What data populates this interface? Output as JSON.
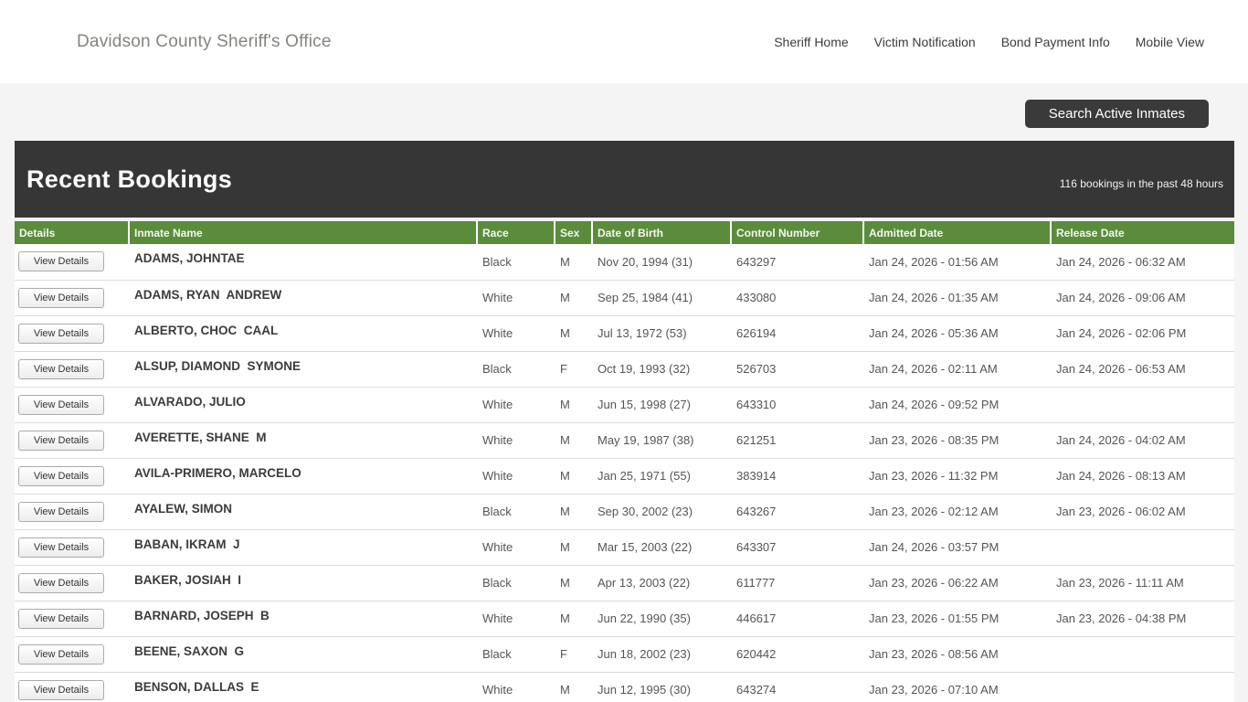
{
  "header": {
    "site_title": "Davidson County Sheriff's Office",
    "nav": [
      {
        "label": "Sheriff Home"
      },
      {
        "label": "Victim Notification"
      },
      {
        "label": "Bond Payment Info"
      },
      {
        "label": "Mobile View"
      }
    ]
  },
  "toolbar": {
    "search_button_label": "Search Active Inmates"
  },
  "bookings": {
    "title": "Recent Bookings",
    "subtitle": "116 bookings in the past 48 hours",
    "view_details_label": "View Details",
    "columns": [
      "Details",
      "Inmate Name",
      "Race",
      "Sex",
      "Date of Birth",
      "Control Number",
      "Admitted Date",
      "Release Date"
    ],
    "rows": [
      {
        "name": "ADAMS, JOHNTAE",
        "race": "Black",
        "sex": "M",
        "dob": "Nov 20, 1994 (31)",
        "control": "643297",
        "admitted": "Jan 24, 2026 - 01:56 AM",
        "released": "Jan 24, 2026 - 06:32 AM"
      },
      {
        "name": "ADAMS, RYAN  ANDREW",
        "race": "White",
        "sex": "M",
        "dob": "Sep 25, 1984 (41)",
        "control": "433080",
        "admitted": "Jan 24, 2026 - 01:35 AM",
        "released": "Jan 24, 2026 - 09:06 AM"
      },
      {
        "name": "ALBERTO, CHOC  CAAL",
        "race": "White",
        "sex": "M",
        "dob": "Jul 13, 1972 (53)",
        "control": "626194",
        "admitted": "Jan 24, 2026 - 05:36 AM",
        "released": "Jan 24, 2026 - 02:06 PM"
      },
      {
        "name": "ALSUP, DIAMOND  SYMONE",
        "race": "Black",
        "sex": "F",
        "dob": "Oct 19, 1993 (32)",
        "control": "526703",
        "admitted": "Jan 24, 2026 - 02:11 AM",
        "released": "Jan 24, 2026 - 06:53 AM"
      },
      {
        "name": "ALVARADO, JULIO",
        "race": "White",
        "sex": "M",
        "dob": "Jun 15, 1998 (27)",
        "control": "643310",
        "admitted": "Jan 24, 2026 - 09:52 PM",
        "released": ""
      },
      {
        "name": "AVERETTE, SHANE  M",
        "race": "White",
        "sex": "M",
        "dob": "May 19, 1987 (38)",
        "control": "621251",
        "admitted": "Jan 23, 2026 - 08:35 PM",
        "released": "Jan 24, 2026 - 04:02 AM"
      },
      {
        "name": "AVILA-PRIMERO, MARCELO",
        "race": "White",
        "sex": "M",
        "dob": "Jan 25, 1971 (55)",
        "control": "383914",
        "admitted": "Jan 23, 2026 - 11:32 PM",
        "released": "Jan 24, 2026 - 08:13 AM"
      },
      {
        "name": "AYALEW, SIMON",
        "race": "Black",
        "sex": "M",
        "dob": "Sep 30, 2002 (23)",
        "control": "643267",
        "admitted": "Jan 23, 2026 - 02:12 AM",
        "released": "Jan 23, 2026 - 06:02 AM"
      },
      {
        "name": "BABAN, IKRAM  J",
        "race": "White",
        "sex": "M",
        "dob": "Mar 15, 2003 (22)",
        "control": "643307",
        "admitted": "Jan 24, 2026 - 03:57 PM",
        "released": ""
      },
      {
        "name": "BAKER, JOSIAH  I",
        "race": "Black",
        "sex": "M",
        "dob": "Apr 13, 2003 (22)",
        "control": "611777",
        "admitted": "Jan 23, 2026 - 06:22 AM",
        "released": "Jan 23, 2026 - 11:11 AM"
      },
      {
        "name": "BARNARD, JOSEPH  B",
        "race": "White",
        "sex": "M",
        "dob": "Jun 22, 1990 (35)",
        "control": "446617",
        "admitted": "Jan 23, 2026 - 01:55 PM",
        "released": "Jan 23, 2026 - 04:38 PM"
      },
      {
        "name": "BEENE, SAXON  G",
        "race": "Black",
        "sex": "F",
        "dob": "Jun 18, 2002 (23)",
        "control": "620442",
        "admitted": "Jan 23, 2026 - 08:56 AM",
        "released": ""
      },
      {
        "name": "BENSON, DALLAS  E",
        "race": "White",
        "sex": "M",
        "dob": "Jun 12, 1995 (30)",
        "control": "643274",
        "admitted": "Jan 23, 2026 - 07:10 AM",
        "released": ""
      }
    ]
  },
  "colors": {
    "accent_green": "#5a8c3c",
    "dark_bar": "#363636",
    "page_bg": "#f4f4f4"
  }
}
